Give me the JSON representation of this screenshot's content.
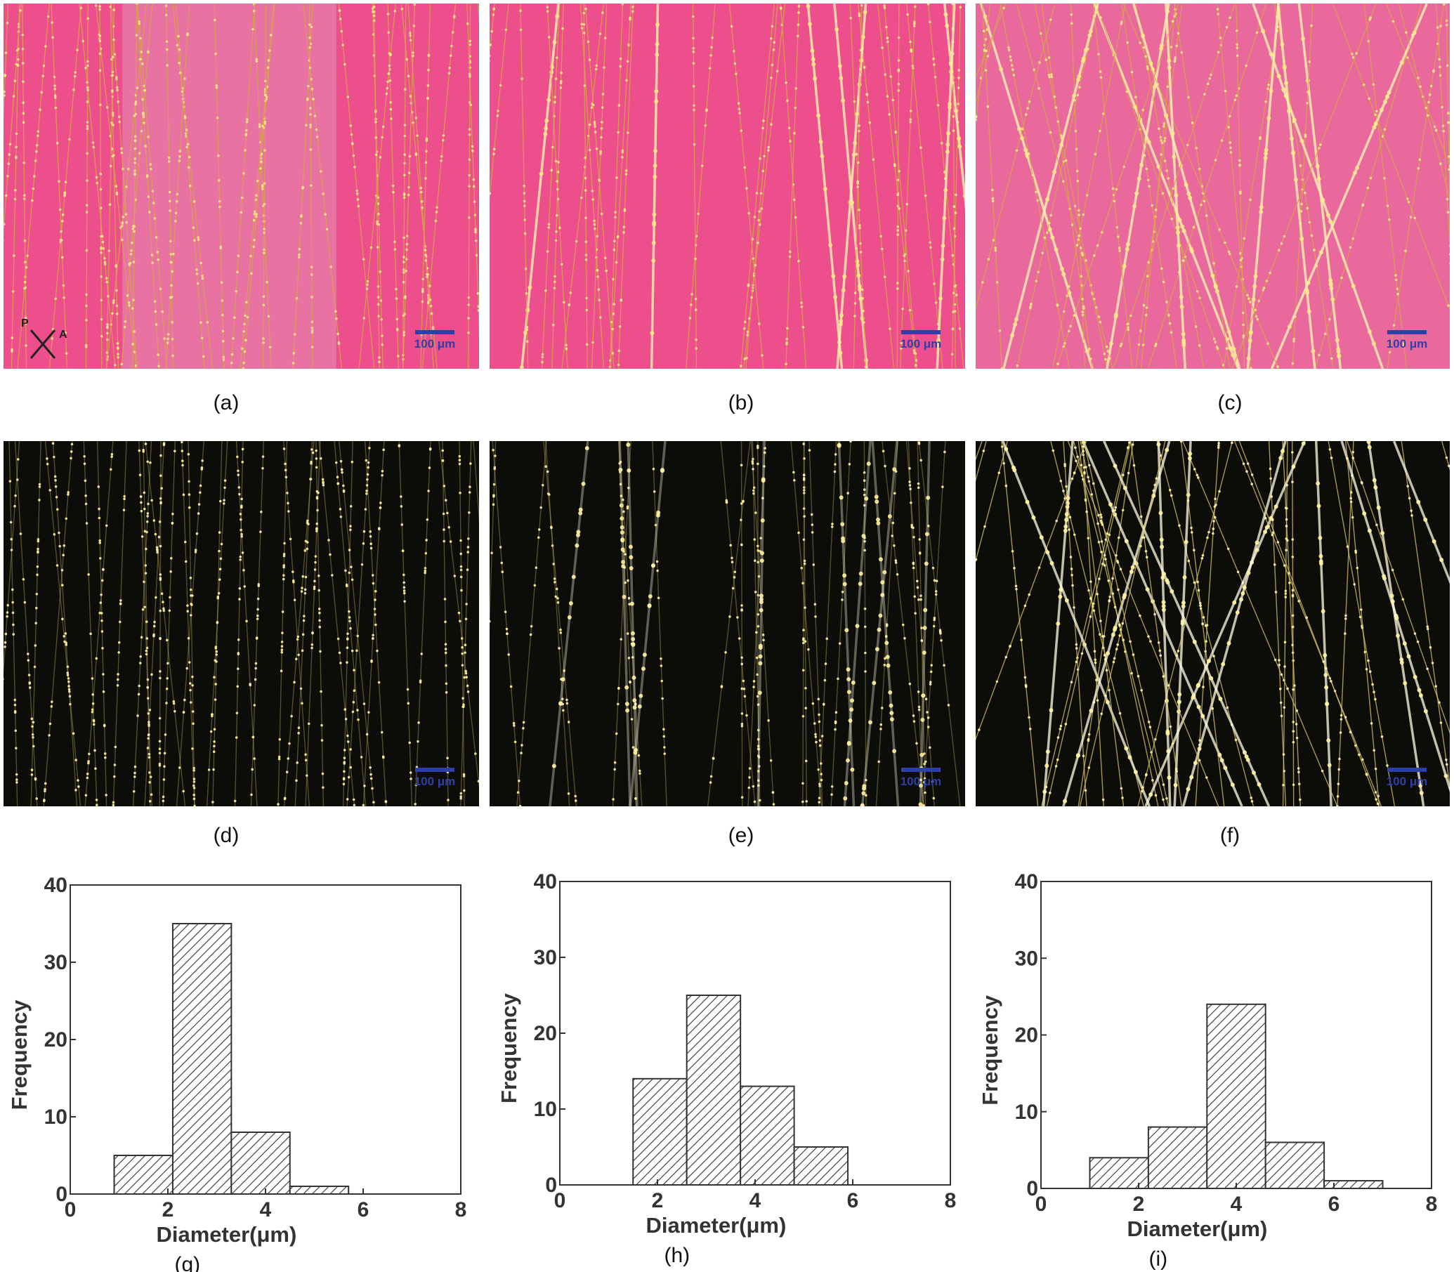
{
  "figure": {
    "panel_captions": [
      "(a)",
      "(b)",
      "(c)",
      "(d)",
      "(e)",
      "(f)"
    ],
    "scale_bar_label": "100 μm",
    "polarizer_labels": {
      "p": "P",
      "a": "A"
    }
  },
  "micrographs": [
    {
      "id": "a",
      "style": "polarized-pink",
      "density": "sparse"
    },
    {
      "id": "b",
      "style": "polarized-pink",
      "density": "bright"
    },
    {
      "id": "c",
      "style": "polarized-pink",
      "density": "crossed"
    },
    {
      "id": "d",
      "style": "dark-field",
      "density": "sparse"
    },
    {
      "id": "e",
      "style": "dark-field",
      "density": "bright"
    },
    {
      "id": "f",
      "style": "dark-field",
      "density": "crossed"
    }
  ],
  "colors": {
    "pink_background": "#ec4f8c",
    "fiber_yellow": "#f4e37a",
    "dark_background": "#0c0c08",
    "scale_bar": "#2f3fa8",
    "hatch": "#333333"
  },
  "chart_data": [
    {
      "type": "bar",
      "caption": "(g)",
      "xlabel": "Diameter(μm)",
      "ylabel": "Frequency",
      "xlim": [
        0,
        8
      ],
      "ylim": [
        0,
        40
      ],
      "xticks": [
        0,
        2,
        4,
        6,
        8
      ],
      "yticks": [
        0,
        10,
        20,
        30,
        40
      ],
      "bins": [
        {
          "x0": 0.9,
          "x1": 2.1,
          "value": 5
        },
        {
          "x0": 2.1,
          "x1": 3.3,
          "value": 35
        },
        {
          "x0": 3.3,
          "x1": 4.5,
          "value": 8
        },
        {
          "x0": 4.5,
          "x1": 5.7,
          "value": 1
        }
      ]
    },
    {
      "type": "bar",
      "caption": "(h)",
      "xlabel": "Diameter(μm)",
      "ylabel": "Frequency",
      "xlim": [
        0,
        8
      ],
      "ylim": [
        0,
        40
      ],
      "xticks": [
        0,
        2,
        4,
        6,
        8
      ],
      "yticks": [
        0,
        10,
        20,
        30,
        40
      ],
      "bins": [
        {
          "x0": 1.5,
          "x1": 2.6,
          "value": 14
        },
        {
          "x0": 2.6,
          "x1": 3.7,
          "value": 25
        },
        {
          "x0": 3.7,
          "x1": 4.8,
          "value": 13
        },
        {
          "x0": 4.8,
          "x1": 5.9,
          "value": 5
        }
      ]
    },
    {
      "type": "bar",
      "caption": "(i)",
      "xlabel": "Diameter(μm)",
      "ylabel": "Frequency",
      "xlim": [
        0,
        8
      ],
      "ylim": [
        0,
        40
      ],
      "xticks": [
        0,
        2,
        4,
        6,
        8
      ],
      "yticks": [
        0,
        10,
        20,
        30,
        40
      ],
      "bins": [
        {
          "x0": 1.0,
          "x1": 2.2,
          "value": 4
        },
        {
          "x0": 2.2,
          "x1": 3.4,
          "value": 8
        },
        {
          "x0": 3.4,
          "x1": 4.6,
          "value": 24
        },
        {
          "x0": 4.6,
          "x1": 5.8,
          "value": 6
        },
        {
          "x0": 5.8,
          "x1": 7.0,
          "value": 1
        }
      ]
    }
  ]
}
